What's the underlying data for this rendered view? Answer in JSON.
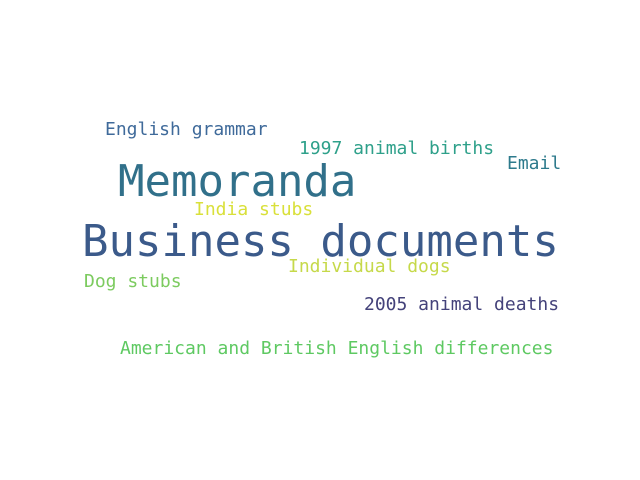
{
  "word_cloud": {
    "words": [
      {
        "id": "business-documents",
        "text": "Business documents",
        "color": "#3b5a8a"
      },
      {
        "id": "memoranda",
        "text": "Memoranda",
        "color": "#31708a"
      },
      {
        "id": "english-grammar",
        "text": "English grammar",
        "color": "#3f6a9a"
      },
      {
        "id": "1997-animal-births",
        "text": "1997 animal births",
        "color": "#2ea08a"
      },
      {
        "id": "email",
        "text": "Email",
        "color": "#2d7a8c"
      },
      {
        "id": "india-stubs",
        "text": "India stubs",
        "color": "#d9e03a"
      },
      {
        "id": "individual-dogs",
        "text": "Individual dogs",
        "color": "#c6d94a"
      },
      {
        "id": "dog-stubs",
        "text": "Dog stubs",
        "color": "#7ccb5f"
      },
      {
        "id": "2005-animal-deaths",
        "text": "2005 animal deaths",
        "color": "#44427a"
      },
      {
        "id": "american-british-english",
        "text": "American and British English differences",
        "color": "#5ec962"
      }
    ]
  }
}
